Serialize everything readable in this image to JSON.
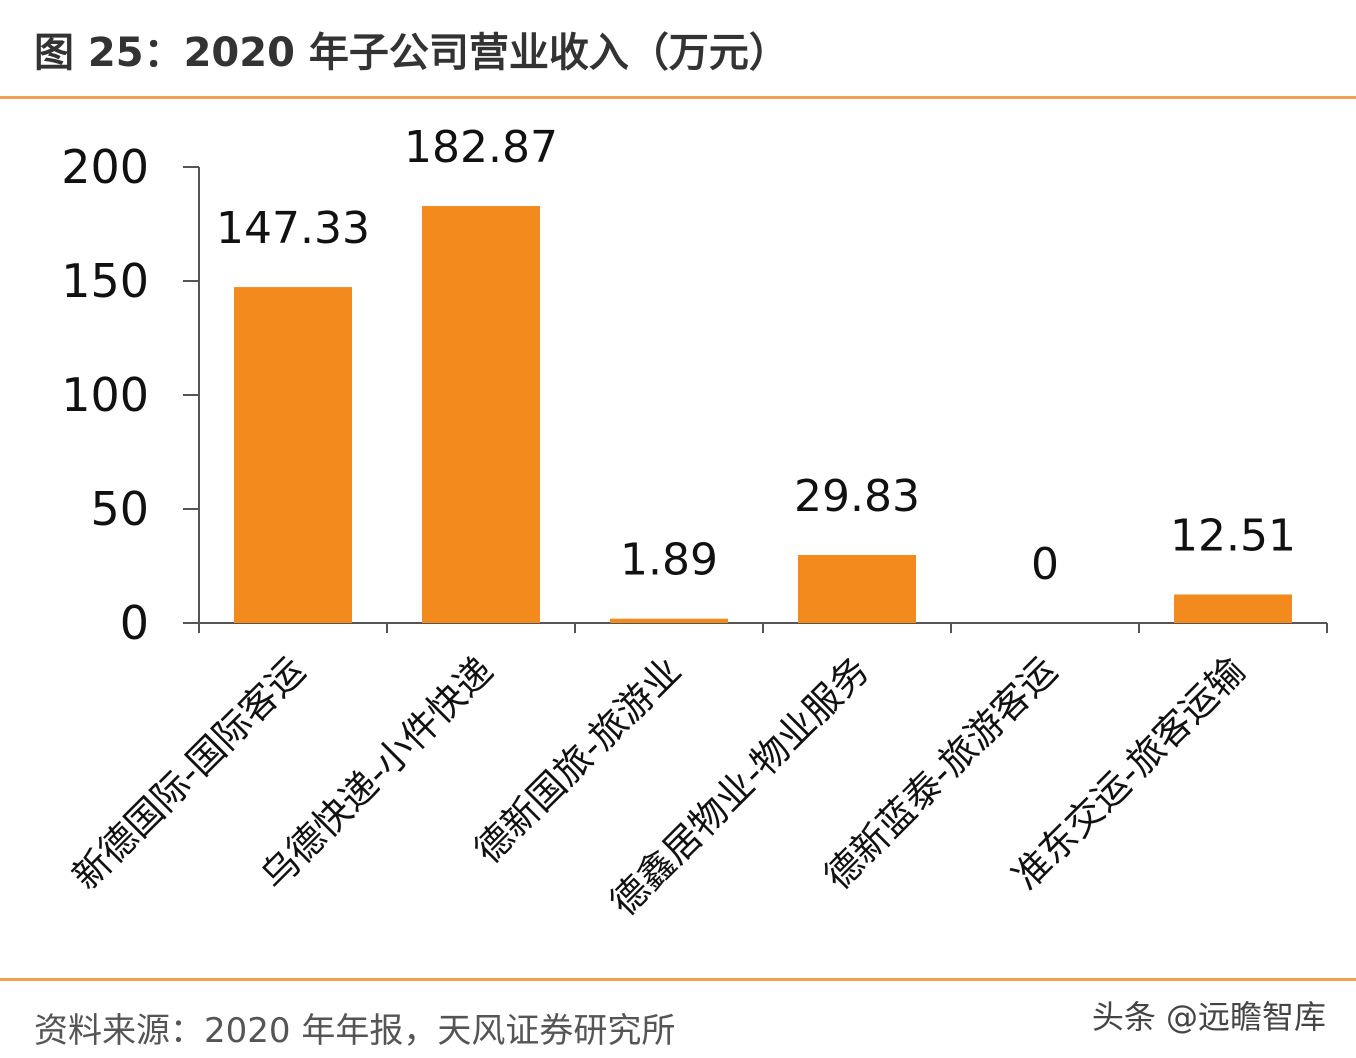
{
  "header": {
    "title": "图 25：2020 年子公司营业收入（万元）"
  },
  "footer": {
    "source": "资料来源：2020 年年报，天风证券研究所",
    "watermark": "头条 @远瞻智库"
  },
  "colors": {
    "accent": "#F28A1E",
    "rule": "#F0A050",
    "axis": "#555555"
  },
  "chart_data": {
    "type": "bar",
    "categories": [
      "新德国际-国际客运",
      "乌德快递-小件快递",
      "德新国旅-旅游业",
      "德鑫居物业-物业服务",
      "德新蓝泰-旅游客运",
      "准东交运-旅客运输"
    ],
    "values": [
      147.33,
      182.87,
      1.89,
      29.83,
      0,
      12.51
    ],
    "data_labels": [
      "147.33",
      "182.87",
      "1.89",
      "29.83",
      "0",
      "12.51"
    ],
    "ylim": [
      0,
      200
    ],
    "yticks": [
      0,
      50,
      100,
      150,
      200
    ],
    "ytick_labels": [
      "0",
      "50",
      "100",
      "150",
      "200"
    ],
    "grid": false,
    "legend": "none"
  }
}
